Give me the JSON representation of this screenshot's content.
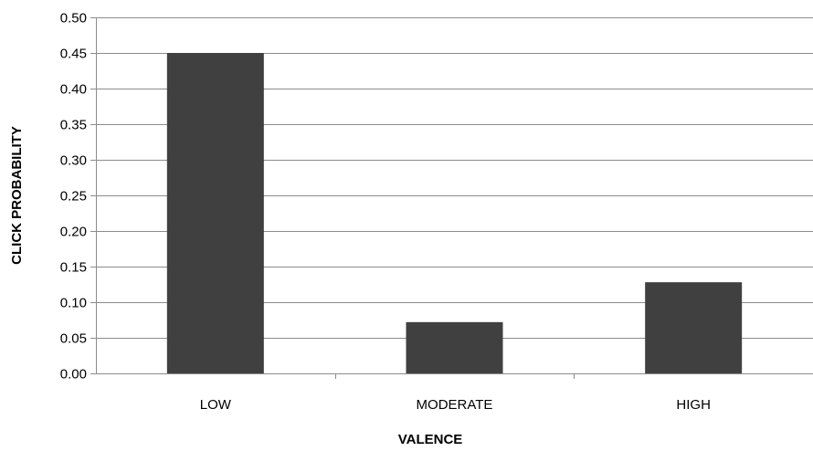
{
  "chart_data": {
    "type": "bar",
    "categories": [
      "LOW",
      "MODERATE",
      "HIGH"
    ],
    "values": [
      0.45,
      0.072,
      0.128
    ],
    "xlabel": "VALENCE",
    "ylabel": "CLICK PROBABILITY",
    "ylim": [
      0,
      0.5
    ],
    "yticks": [
      "0.00",
      "0.05",
      "0.10",
      "0.15",
      "0.20",
      "0.25",
      "0.30",
      "0.35",
      "0.40",
      "0.45",
      "0.50"
    ],
    "grid": true,
    "legend": "none",
    "bar_color": "#404040",
    "grid_color": "#8c8c8c"
  }
}
